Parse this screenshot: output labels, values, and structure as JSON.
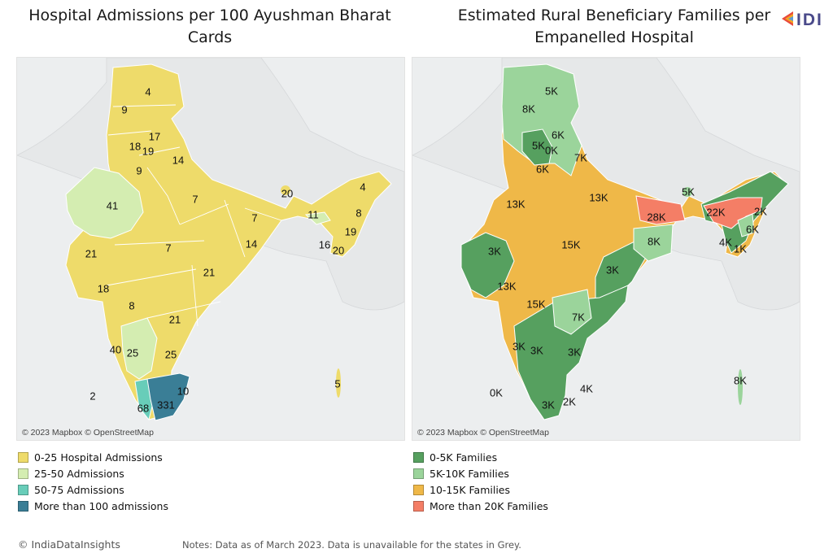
{
  "left_panel": {
    "title": "Hospital Admissions per 100 Ayushman Bharat Cards",
    "attribution": "© 2023 Mapbox © OpenStreetMap",
    "legend": [
      {
        "label": "0-25 Hospital Admissions",
        "color": "#eedb6a"
      },
      {
        "label": "25-50 Admissions",
        "color": "#d4edb1"
      },
      {
        "label": "50-75 Admissions",
        "color": "#68cdb9"
      },
      {
        "label": "More than 100 admissions",
        "color": "#3a7e96"
      }
    ],
    "values": [
      "4",
      "9",
      "17",
      "18",
      "19",
      "14",
      "9",
      "41",
      "7",
      "20",
      "4",
      "11",
      "8",
      "7",
      "14",
      "19",
      "16",
      "20",
      "21",
      "7",
      "18",
      "21",
      "8",
      "21",
      "40",
      "25",
      "25",
      "2",
      "10",
      "68",
      "331",
      "5"
    ]
  },
  "right_panel": {
    "title": "Estimated Rural Beneficiary Families per Empanelled Hospital",
    "attribution": "© 2023 Mapbox © OpenStreetMap",
    "legend": [
      {
        "label": "0-5K Families",
        "color": "#56a05f"
      },
      {
        "label": "5K-10K Families",
        "color": "#9bd49b"
      },
      {
        "label": "10-15K Families",
        "color": "#efb848"
      },
      {
        "label": "More than 20K Families",
        "color": "#f47e66"
      }
    ],
    "values": [
      "5K",
      "8K",
      "6K",
      "5K",
      "0K",
      "7K",
      "6K",
      "5K",
      "13K",
      "13K",
      "28K",
      "22K",
      "2K",
      "6K",
      "4K",
      "1K",
      "8K",
      "15K",
      "3K",
      "3K",
      "13K",
      "15K",
      "7K",
      "3K",
      "3K",
      "3K",
      "4K",
      "0K",
      "2K",
      "3K",
      "8K",
      "5K"
    ]
  },
  "logo": {
    "text": "IDI",
    "colors": [
      "#e84a3c",
      "#f5a623",
      "#5b9bd5",
      "#8e44ad"
    ]
  },
  "footer": {
    "credit": "© IndiaDataInsights",
    "note": "Notes: Data as of March 2023. Data is unavailable for the states in Grey."
  }
}
